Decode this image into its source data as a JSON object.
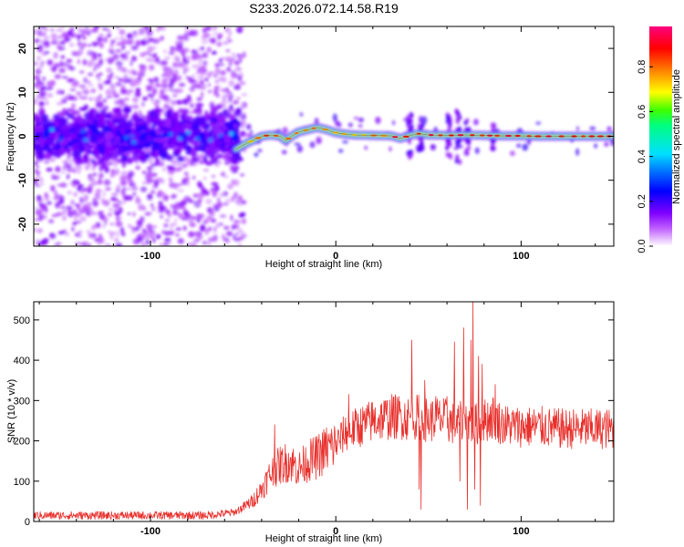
{
  "title": "S233.2026.072.14.58.R19",
  "colors": {
    "snr_line": "#e8302c",
    "frame": "#000000"
  },
  "chart_data": [
    {
      "type": "heatmap",
      "id": "spectrogram",
      "xlabel": "Height of straight line (km)",
      "ylabel": "Frequency (Hz)",
      "xlim": [
        -163,
        150
      ],
      "ylim": [
        -25,
        25
      ],
      "xticks": [
        -100,
        0,
        100
      ],
      "yticks": [
        -20,
        -10,
        0,
        10,
        20
      ],
      "ridge": {
        "start_km": -54,
        "end_km": 150,
        "profile_km": [
          -54,
          -50,
          -45,
          -40,
          -35,
          -30,
          -27,
          -24,
          -20,
          -15,
          -10,
          -5,
          0,
          5,
          10,
          20,
          30,
          35,
          40,
          45,
          50,
          60,
          70,
          80,
          90,
          100,
          110,
          120,
          130,
          140,
          150
        ],
        "profile_hz": [
          -3,
          -2,
          -1,
          0,
          0.3,
          0,
          -1,
          0,
          1,
          1.5,
          2,
          1.5,
          0.8,
          0.5,
          0.3,
          0.2,
          0.1,
          -0.5,
          0.2,
          0.6,
          0.3,
          0.2,
          0.3,
          0.2,
          0.1,
          0.1,
          0,
          0,
          0,
          0,
          0
        ]
      },
      "colorbar": {
        "label": "Normalized spectral amplitude",
        "ticks": [
          "0.0",
          "0.2",
          "0.4",
          "0.6",
          "0.8"
        ]
      }
    },
    {
      "type": "line",
      "id": "snr",
      "xlabel": "Height of straight line (km)",
      "ylabel": "SNR (10 * v/v)",
      "xlim": [
        -163,
        150
      ],
      "ylim": [
        0,
        545
      ],
      "xticks": [
        -100,
        0,
        100
      ],
      "yticks": [
        0,
        100,
        200,
        300,
        400,
        500
      ],
      "envelope": {
        "x": [
          -163,
          -70,
          -55,
          -50,
          -45,
          -40,
          -35,
          -30,
          -25,
          -20,
          -15,
          -10,
          -5,
          0,
          5,
          10,
          15,
          20,
          25,
          30,
          35,
          40,
          45,
          50,
          55,
          60,
          65,
          70,
          75,
          80,
          85,
          90,
          100,
          110,
          120,
          130,
          140,
          150
        ],
        "y": [
          15,
          15,
          22,
          35,
          50,
          80,
          120,
          140,
          150,
          130,
          150,
          160,
          180,
          190,
          220,
          230,
          240,
          250,
          255,
          260,
          260,
          255,
          260,
          250,
          255,
          250,
          240,
          250,
          240,
          250,
          260,
          240,
          235,
          235,
          230,
          230,
          230,
          230
        ]
      },
      "spikes": [
        {
          "x": -33,
          "y": 240
        },
        {
          "x": 7,
          "y": 315
        },
        {
          "x": 41,
          "y": 450
        },
        {
          "x": 45,
          "y": 80
        },
        {
          "x": 46,
          "y": 30
        },
        {
          "x": 48,
          "y": 350
        },
        {
          "x": 54,
          "y": 310
        },
        {
          "x": 60,
          "y": 310
        },
        {
          "x": 64,
          "y": 445
        },
        {
          "x": 67,
          "y": 100
        },
        {
          "x": 69,
          "y": 480
        },
        {
          "x": 71,
          "y": 30
        },
        {
          "x": 73,
          "y": 450
        },
        {
          "x": 74,
          "y": 545
        },
        {
          "x": 75,
          "y": 80
        },
        {
          "x": 77,
          "y": 410
        },
        {
          "x": 78,
          "y": 40
        },
        {
          "x": 79,
          "y": 390
        },
        {
          "x": 86,
          "y": 340
        }
      ]
    }
  ]
}
